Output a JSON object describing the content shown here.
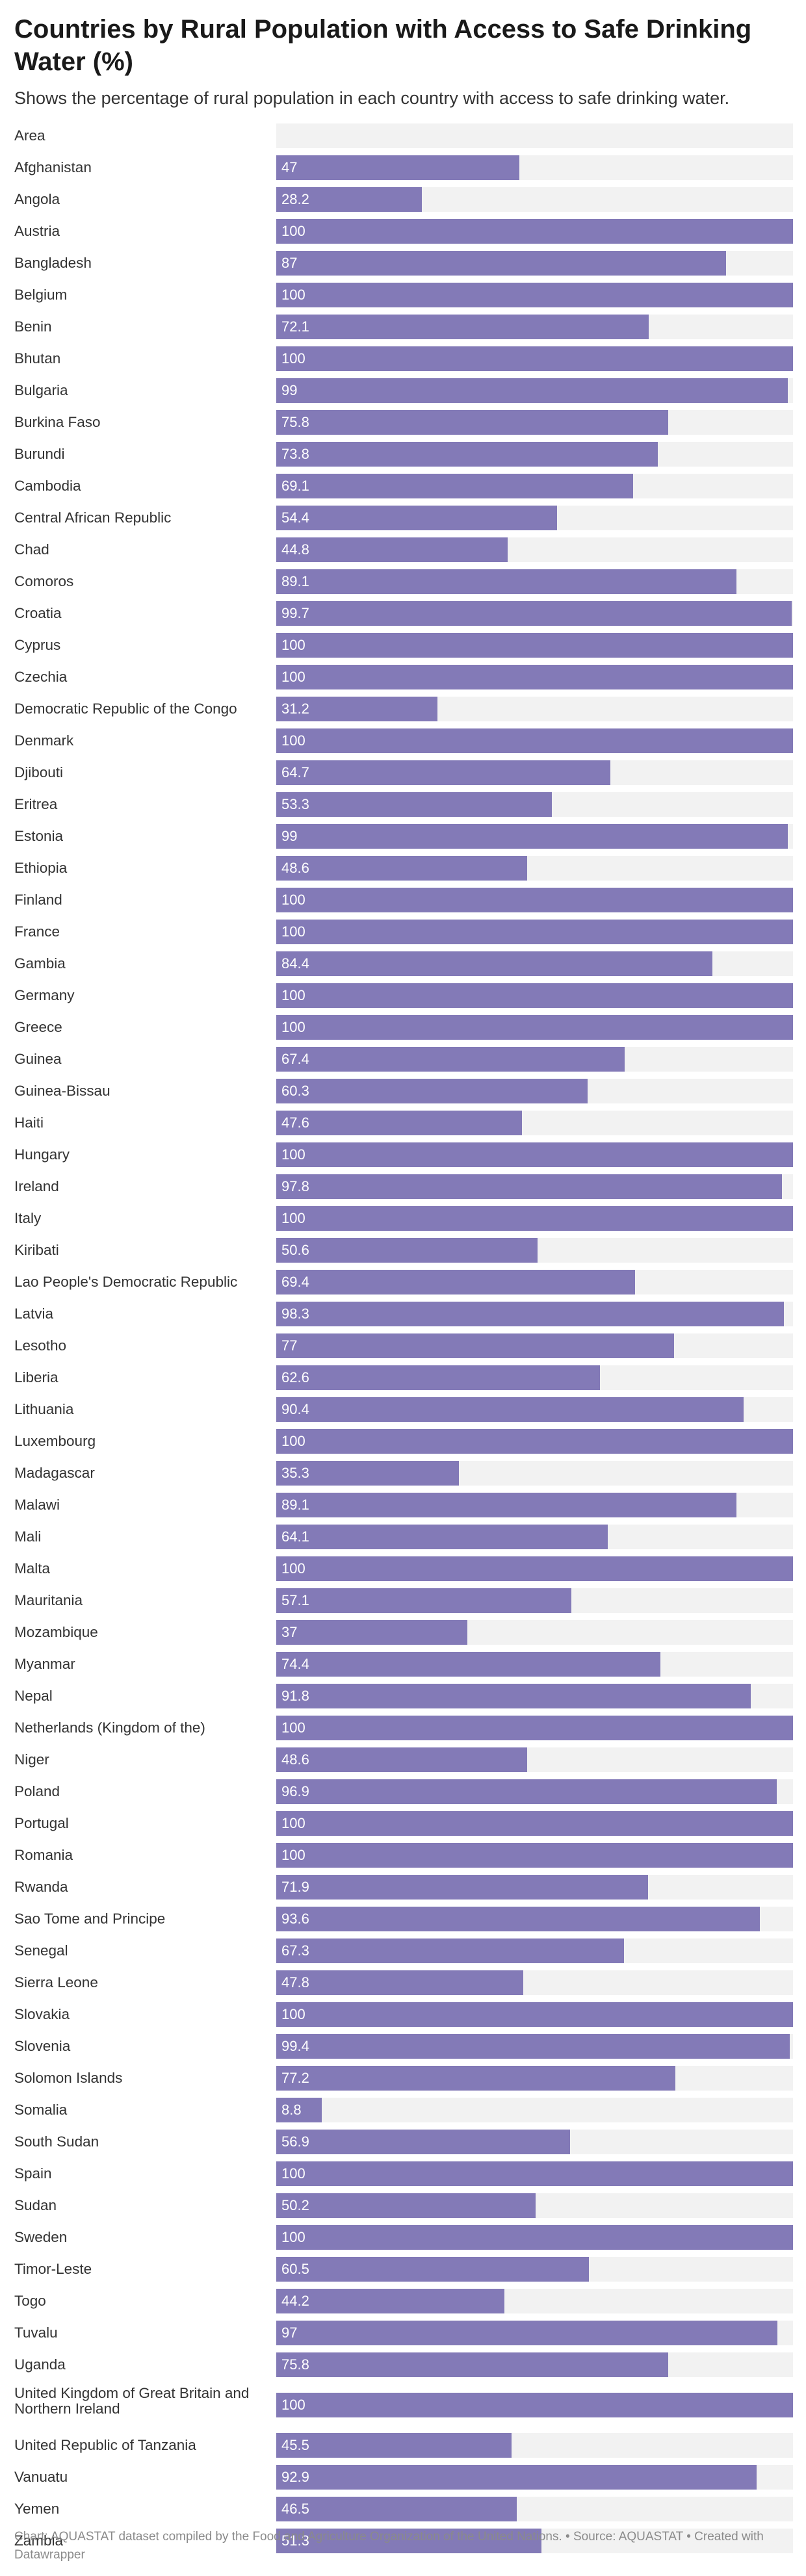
{
  "chart_data": {
    "type": "bar",
    "orientation": "horizontal",
    "title": "Countries by Rural Population with Access to Safe Drinking Water (%)",
    "subtitle": "Shows the percentage of rural population in each country with access to safe drinking water.",
    "column_header": "Area",
    "xlim": [
      0,
      100
    ],
    "bar_color": "#837ab7",
    "track_color": "#f2f2f2",
    "categories": [
      "Afghanistan",
      "Angola",
      "Austria",
      "Bangladesh",
      "Belgium",
      "Benin",
      "Bhutan",
      "Bulgaria",
      "Burkina Faso",
      "Burundi",
      "Cambodia",
      "Central African Republic",
      "Chad",
      "Comoros",
      "Croatia",
      "Cyprus",
      "Czechia",
      "Democratic Republic of the Congo",
      "Denmark",
      "Djibouti",
      "Eritrea",
      "Estonia",
      "Ethiopia",
      "Finland",
      "France",
      "Gambia",
      "Germany",
      "Greece",
      "Guinea",
      "Guinea-Bissau",
      "Haiti",
      "Hungary",
      "Ireland",
      "Italy",
      "Kiribati",
      "Lao People's Democratic Republic",
      "Latvia",
      "Lesotho",
      "Liberia",
      "Lithuania",
      "Luxembourg",
      "Madagascar",
      "Malawi",
      "Mali",
      "Malta",
      "Mauritania",
      "Mozambique",
      "Myanmar",
      "Nepal",
      "Netherlands (Kingdom of the)",
      "Niger",
      "Poland",
      "Portugal",
      "Romania",
      "Rwanda",
      "Sao Tome and Principe",
      "Senegal",
      "Sierra Leone",
      "Slovakia",
      "Slovenia",
      "Solomon Islands",
      "Somalia",
      "South Sudan",
      "Spain",
      "Sudan",
      "Sweden",
      "Timor-Leste",
      "Togo",
      "Tuvalu",
      "Uganda",
      "United Kingdom of Great Britain and Northern Ireland",
      "United Republic of Tanzania",
      "Vanuatu",
      "Yemen",
      "Zambia"
    ],
    "values": [
      47,
      28.2,
      100,
      87,
      100,
      72.1,
      100,
      99,
      75.8,
      73.8,
      69.1,
      54.4,
      44.8,
      89.1,
      99.7,
      100,
      100,
      31.2,
      100,
      64.7,
      53.3,
      99,
      48.6,
      100,
      100,
      84.4,
      100,
      100,
      67.4,
      60.3,
      47.6,
      100,
      97.8,
      100,
      50.6,
      69.4,
      98.3,
      77,
      62.6,
      90.4,
      100,
      35.3,
      89.1,
      64.1,
      100,
      57.1,
      37,
      74.4,
      91.8,
      100,
      48.6,
      96.9,
      100,
      100,
      71.9,
      93.6,
      67.3,
      47.8,
      100,
      99.4,
      77.2,
      8.8,
      56.9,
      100,
      50.2,
      100,
      60.5,
      44.2,
      97,
      75.8,
      100,
      45.5,
      92.9,
      46.5,
      51.3
    ]
  },
  "footer": {
    "text": "Chart: AQUASTAT dataset compiled by the Food and Agriculture Organization of the United Nations. • Source: AQUASTAT • Created with Datawrapper"
  }
}
